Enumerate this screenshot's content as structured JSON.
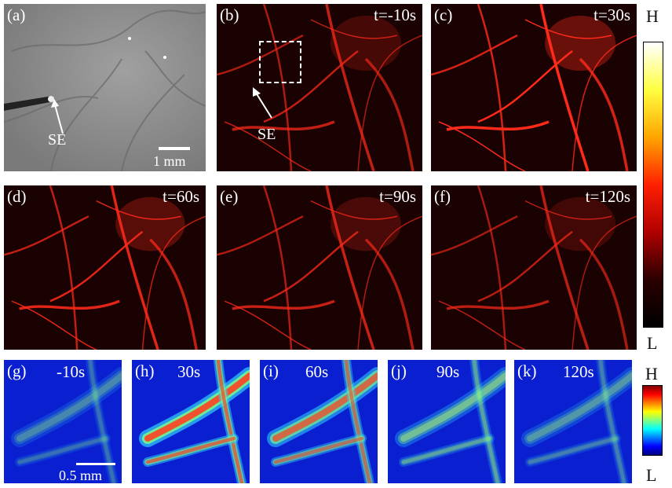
{
  "panels": [
    {
      "id": "a",
      "label": "(a)",
      "time": ""
    },
    {
      "id": "b",
      "label": "(b)",
      "time": "t=-10s"
    },
    {
      "id": "c",
      "label": "(c)",
      "time": "t=30s"
    },
    {
      "id": "d",
      "label": "(d)",
      "time": "t=60s"
    },
    {
      "id": "e",
      "label": "(e)",
      "time": "t=90s"
    },
    {
      "id": "f",
      "label": "(f)",
      "time": "t=120s"
    },
    {
      "id": "g",
      "label": "(g)",
      "time": "-10s"
    },
    {
      "id": "h",
      "label": "(h)",
      "time": "30s"
    },
    {
      "id": "i",
      "label": "(i)",
      "time": "60s"
    },
    {
      "id": "j",
      "label": "(j)",
      "time": "90s"
    },
    {
      "id": "k",
      "label": "(k)",
      "time": "120s"
    }
  ],
  "annotations": {
    "se_label_a": "SE",
    "se_label_b": "SE",
    "scale_a": "1 mm",
    "scale_g": "0.5 mm"
  },
  "colorbars": {
    "top": {
      "high": "H",
      "low": "L",
      "colors": [
        "#ffffff",
        "#ffff40",
        "#ffa500",
        "#ff2000",
        "#b00000",
        "#2a0000",
        "#000000"
      ]
    },
    "bottom": {
      "high": "H",
      "low": "L",
      "colors": [
        "#7f0000",
        "#ff0000",
        "#ff8000",
        "#ffff00",
        "#80ff80",
        "#00ffff",
        "#0080ff",
        "#0000ff",
        "#00007f"
      ]
    }
  },
  "colors": {
    "red_vessel": "#ff2a1a",
    "blue_background": "#0a1fcf"
  }
}
